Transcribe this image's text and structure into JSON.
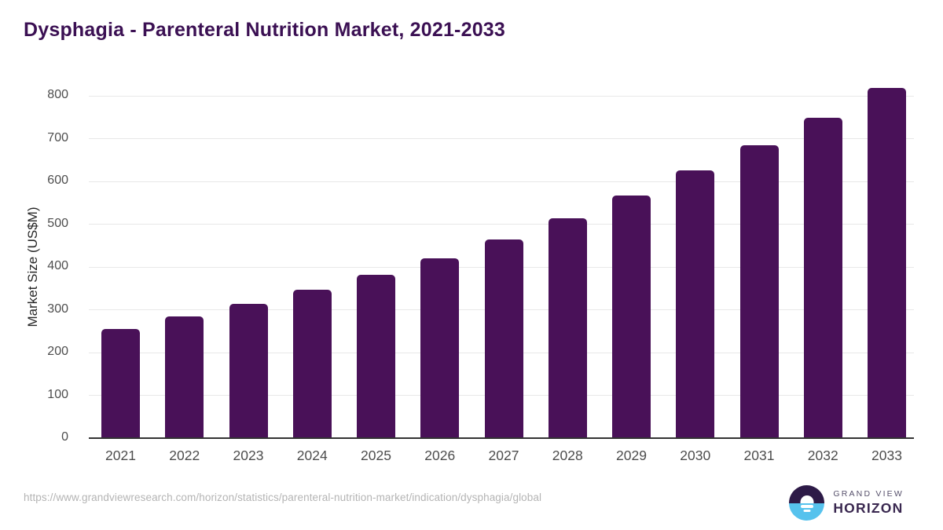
{
  "header": {
    "title": "Dysphagia - Parenteral Nutrition Market, 2021-2033"
  },
  "chart_data": {
    "type": "bar",
    "title": "Dysphagia - Parenteral Nutrition Market, 2021-2033",
    "categories": [
      "2021",
      "2022",
      "2023",
      "2024",
      "2025",
      "2026",
      "2027",
      "2028",
      "2029",
      "2030",
      "2031",
      "2032",
      "2033"
    ],
    "values": [
      255,
      285,
      314,
      347,
      382,
      420,
      464,
      513,
      567,
      626,
      684,
      749,
      818
    ],
    "xlabel": "",
    "ylabel": "Market Size (US$M)",
    "ylim": [
      0,
      800
    ],
    "yticks": [
      0,
      100,
      200,
      300,
      400,
      500,
      600,
      700,
      800
    ],
    "grid": true,
    "legend": false,
    "bar_color": "#491158"
  },
  "footer": {
    "source_url": "https://www.grandviewresearch.com/horizon/statistics/parenteral-nutrition-market/indication/dysphagia/global",
    "logo_line1": "GRAND VIEW",
    "logo_line2": "HORIZON"
  },
  "colors": {
    "title": "#3b1053",
    "bar": "#491158",
    "gridline": "#e8e8e8",
    "axis": "#333333",
    "tick_label": "#4d4d4d",
    "url": "#b4b4b4",
    "logo_navy": "#2d1a47",
    "logo_blue": "#56c2ed"
  }
}
